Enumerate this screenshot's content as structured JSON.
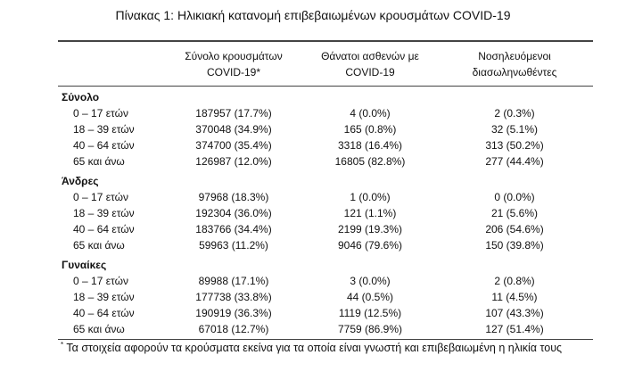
{
  "title": "Πίνακας 1: Ηλικιακή κατανομή επιβεβαιωμένων κρουσμάτων COVID-19",
  "columns": [
    {
      "line1": "Σύνολο κρουσμάτων",
      "line2": "COVID-19*"
    },
    {
      "line1": "Θάνατοι ασθενών με",
      "line2": "COVID-19"
    },
    {
      "line1": "Νοσηλευόμενοι",
      "line2": "διασωληνωθέντες"
    }
  ],
  "sections": [
    {
      "name": "Σύνολο",
      "rows": [
        {
          "label": "0 – 17 ετών",
          "values": [
            "187957 (17.7%)",
            "4 (0.0%)",
            "2 (0.3%)"
          ]
        },
        {
          "label": "18 – 39 ετών",
          "values": [
            "370048 (34.9%)",
            "165 (0.8%)",
            "32 (5.1%)"
          ]
        },
        {
          "label": "40 – 64 ετών",
          "values": [
            "374700 (35.4%)",
            "3318 (16.4%)",
            "313 (50.2%)"
          ]
        },
        {
          "label": "65 και άνω",
          "values": [
            "126987 (12.0%)",
            "16805 (82.8%)",
            "277 (44.4%)"
          ]
        }
      ]
    },
    {
      "name": "Άνδρες",
      "rows": [
        {
          "label": "0 – 17 ετών",
          "values": [
            "97968 (18.3%)",
            "1 (0.0%)",
            "0 (0.0%)"
          ]
        },
        {
          "label": "18 – 39 ετών",
          "values": [
            "192304 (36.0%)",
            "121 (1.1%)",
            "21 (5.6%)"
          ]
        },
        {
          "label": "40 – 64 ετών",
          "values": [
            "183766 (34.4%)",
            "2199 (19.3%)",
            "206 (54.6%)"
          ]
        },
        {
          "label": "65 και άνω",
          "values": [
            "59963 (11.2%)",
            "9046 (79.6%)",
            "150 (39.8%)"
          ]
        }
      ]
    },
    {
      "name": "Γυναίκες",
      "rows": [
        {
          "label": "0 – 17 ετών",
          "values": [
            "89988 (17.1%)",
            "3 (0.0%)",
            "2 (0.8%)"
          ]
        },
        {
          "label": "18 – 39 ετών",
          "values": [
            "177738 (33.8%)",
            "44 (0.5%)",
            "11 (4.5%)"
          ]
        },
        {
          "label": "40 – 64 ετών",
          "values": [
            "190919 (36.3%)",
            "1119 (12.5%)",
            "107 (43.3%)"
          ]
        },
        {
          "label": "65 και άνω",
          "values": [
            "67018 (12.7%)",
            "7759 (86.9%)",
            "127 (51.4%)"
          ]
        }
      ]
    }
  ],
  "footnote": {
    "mark": "*",
    "text": "Τα στοιχεία αφορούν τα κρούσματα εκείνα για τα οποία είναι γνωστή και επιβεβαιωμένη η ηλικία τους"
  }
}
